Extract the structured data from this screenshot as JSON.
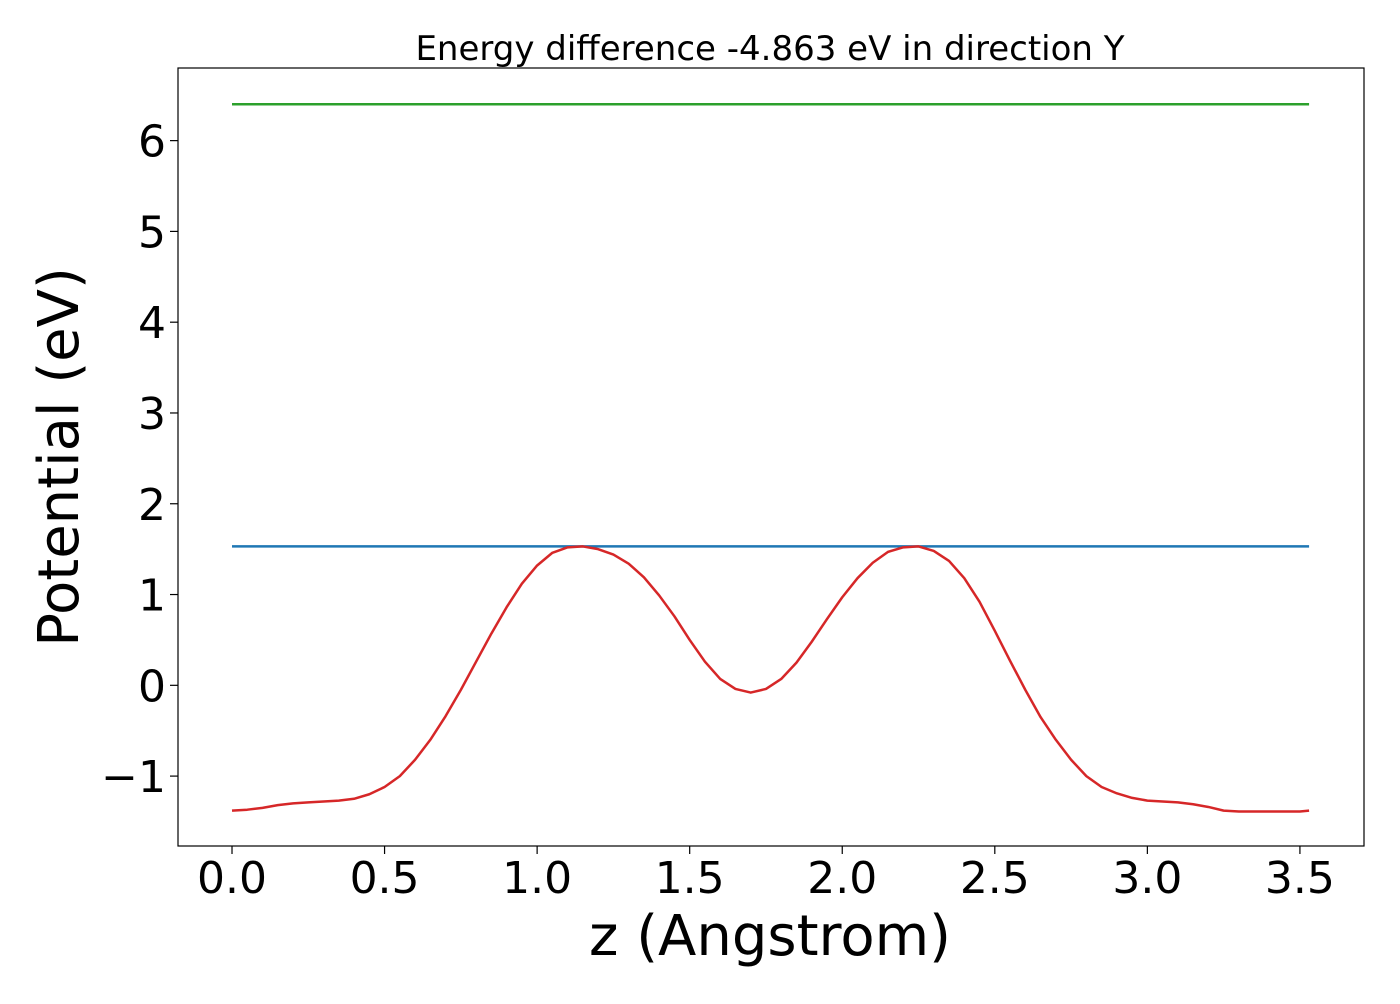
{
  "chart_data": {
    "type": "line",
    "title": "Energy difference -4.863 eV in direction Y",
    "xlabel": "z (Angstrom)",
    "ylabel": "Potential (eV)",
    "xlim": [
      -0.177,
      3.71
    ],
    "ylim": [
      -1.77,
      6.8
    ],
    "x_ticks": [
      0.0,
      0.5,
      1.0,
      1.5,
      2.0,
      2.5,
      3.0,
      3.5
    ],
    "x_tick_labels": [
      "0.0",
      "0.5",
      "1.0",
      "1.5",
      "2.0",
      "2.5",
      "3.0",
      "3.5"
    ],
    "y_ticks": [
      -1,
      0,
      1,
      2,
      3,
      4,
      5,
      6
    ],
    "y_tick_labels": [
      "−1",
      "0",
      "1",
      "2",
      "3",
      "4",
      "5",
      "6"
    ],
    "grid": false,
    "series": [
      {
        "color": "#d62728",
        "x": [
          0.0,
          0.05,
          0.1,
          0.15,
          0.2,
          0.25,
          0.3,
          0.35,
          0.4,
          0.45,
          0.5,
          0.55,
          0.6,
          0.65,
          0.7,
          0.75,
          0.8,
          0.85,
          0.9,
          0.95,
          1.0,
          1.05,
          1.1,
          1.15,
          1.2,
          1.25,
          1.3,
          1.35,
          1.4,
          1.45,
          1.5,
          1.55,
          1.6,
          1.65,
          1.7,
          1.75,
          1.8,
          1.85,
          1.9,
          1.95,
          2.0,
          2.05,
          2.1,
          2.15,
          2.2,
          2.25,
          2.3,
          2.35,
          2.4,
          2.45,
          2.5,
          2.55,
          2.6,
          2.65,
          2.7,
          2.75,
          2.8,
          2.85,
          2.9,
          2.95,
          3.0,
          3.05,
          3.1,
          3.15,
          3.2,
          3.25,
          3.3,
          3.35,
          3.4,
          3.45,
          3.5,
          3.53
        ],
        "y": [
          -1.38,
          -1.37,
          -1.35,
          -1.32,
          -1.3,
          -1.29,
          -1.28,
          -1.27,
          -1.25,
          -1.2,
          -1.12,
          -1.0,
          -0.82,
          -0.6,
          -0.34,
          -0.05,
          0.26,
          0.57,
          0.86,
          1.12,
          1.32,
          1.46,
          1.52,
          1.53,
          1.5,
          1.44,
          1.34,
          1.19,
          0.99,
          0.76,
          0.5,
          0.26,
          0.07,
          -0.04,
          -0.08,
          -0.04,
          0.07,
          0.25,
          0.48,
          0.73,
          0.97,
          1.18,
          1.35,
          1.47,
          1.52,
          1.53,
          1.48,
          1.37,
          1.18,
          0.92,
          0.6,
          0.27,
          -0.05,
          -0.35,
          -0.6,
          -0.82,
          -1.0,
          -1.12,
          -1.19,
          -1.24,
          -1.27,
          -1.28,
          -1.29,
          -1.31,
          -1.34,
          -1.38,
          -1.39,
          -1.39,
          -1.39,
          -1.39,
          -1.39,
          -1.38
        ]
      },
      {
        "color": "#1f77b4",
        "x": [
          0.0,
          3.53
        ],
        "y": [
          1.53,
          1.53
        ]
      },
      {
        "color": "#2ca02c",
        "x": [
          0.0,
          3.53
        ],
        "y": [
          6.4,
          6.4
        ]
      }
    ]
  }
}
